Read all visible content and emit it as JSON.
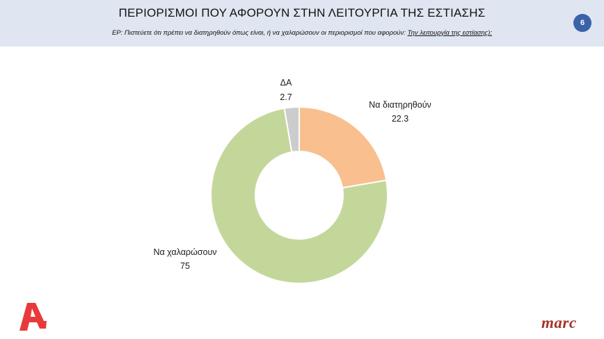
{
  "header": {
    "title": "ΠΕΡΙΟΡΙΣΜΟΙ ΠΟΥ ΑΦΟΡΟΥΝ ΣΤΗΝ ΛΕΙΤΟΥΡΓΙΑ ΤΗΣ ΕΣΤΙΑΣΗΣ",
    "question": "ΕΡ:  Πιστεύετε ότι πρέπει  να διατηρηθούν όπως είναι, ή να χαλαρώσουν οι περιορισμοί που αφορούν: ",
    "question_topic": "Την λειτουργία της εστίασης):",
    "page_number": "6",
    "background_color": "#dfe6f1"
  },
  "chart_data": {
    "type": "pie",
    "variant": "donut",
    "series": [
      {
        "name": "Να διατηρηθούν",
        "value": 22.3,
        "label": "22.3",
        "color": "#f9bf8f"
      },
      {
        "name": "Να χαλαρώσουν",
        "value": 75,
        "label": "75",
        "color": "#c4d79b"
      },
      {
        "name": "ΔΑ",
        "value": 2.7,
        "label": "2.7",
        "color": "#cccccc"
      }
    ],
    "start_angle": "12 o'clock",
    "direction": "clockwise"
  },
  "footer": {
    "alpha_logo": "alpha-logo",
    "alpha_color": "#e83a3a",
    "marc_logo": "marc"
  }
}
